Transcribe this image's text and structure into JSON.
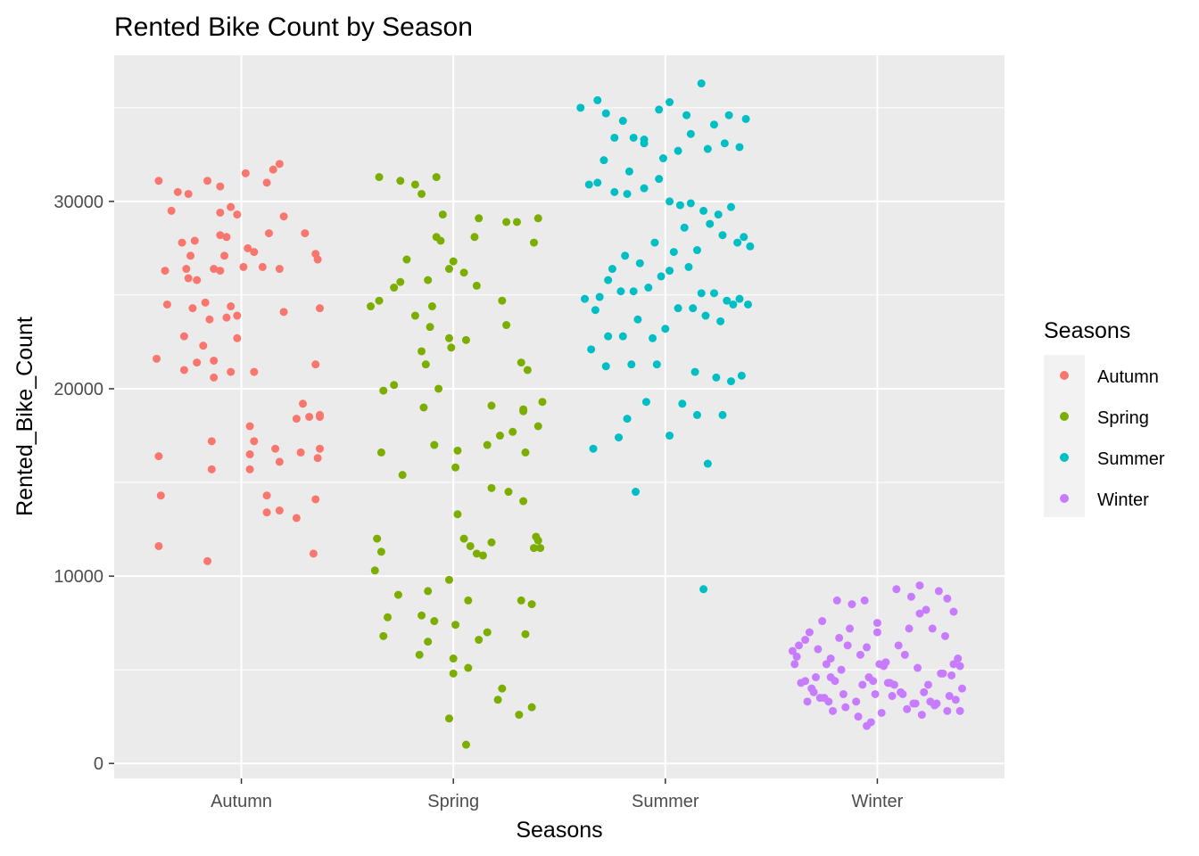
{
  "chart_data": {
    "type": "scatter",
    "title": "Rented Bike Count by Season",
    "xlabel": "Seasons",
    "ylabel": "Rented_Bike_Count",
    "categories": [
      "Autumn",
      "Spring",
      "Summer",
      "Winter"
    ],
    "y_ticks": [
      "0",
      "10000",
      "20000",
      "30000"
    ],
    "ylim": [
      -800,
      37800
    ],
    "grid": true,
    "legend": {
      "title": "Seasons",
      "position": "right",
      "entries": [
        "Autumn",
        "Spring",
        "Summer",
        "Winter"
      ]
    },
    "colors": {
      "Autumn": "#F8766D",
      "Spring": "#7CAE00",
      "Summer": "#00BFC4",
      "Winter": "#C77CFF"
    },
    "panel_background": "#EBEBEB",
    "series": [
      {
        "name": "Autumn",
        "x": [
          0.95,
          0.9,
          1.12,
          1.2,
          1.15,
          1.3,
          0.93,
          0.9,
          0.72,
          0.9,
          1.13,
          1.35,
          1.36,
          0.9,
          0.78,
          1.03,
          1.06,
          1.18,
          0.79,
          0.75,
          0.87,
          0.92,
          1.1,
          1.01,
          0.64,
          0.67,
          0.76,
          0.61,
          0.75,
          0.84,
          1.02,
          1.18,
          0.7,
          0.98,
          0.93,
          0.77,
          0.74,
          0.95,
          0.79,
          0.95,
          0.83,
          0.98,
          0.65,
          1.37,
          1.2,
          0.85,
          0.98,
          0.87,
          0.6,
          1.06,
          0.73,
          0.87,
          1.35,
          1.32,
          1.29,
          1.37,
          0.73,
          0.82,
          1.37,
          0.86,
          1.36,
          1.28,
          1.06,
          1.04,
          1.26,
          1.16,
          1.04,
          1.37,
          0.86,
          1.18,
          0.61,
          1.12,
          1.04,
          0.62,
          1.18,
          0.61,
          1.12,
          1.35,
          1.26,
          0.84,
          1.34
        ],
        "y": [
          29700,
          29400,
          31000,
          29200,
          31700,
          28300,
          28100,
          30800,
          27800,
          28200,
          28300,
          27200,
          26900,
          26300,
          27900,
          27500,
          27300,
          26400,
          25800,
          25900,
          26400,
          27100,
          26500,
          26500,
          26300,
          29500,
          27100,
          31100,
          30400,
          31100,
          31500,
          32000,
          30500,
          29300,
          23800,
          24300,
          26400,
          24400,
          21400,
          20900,
          24600,
          22700,
          24500,
          24300,
          24100,
          23700,
          23900,
          21500,
          21600,
          20900,
          21000,
          20600,
          21300,
          18500,
          19200,
          18500,
          22800,
          22300,
          18600,
          17200,
          16300,
          16600,
          17200,
          18000,
          18400,
          16800,
          16500,
          16800,
          15700,
          16100,
          16400,
          14300,
          15700,
          14300,
          13500,
          11600,
          13400,
          14100,
          13100,
          10800,
          11200
        ]
      },
      {
        "name": "Spring",
        "x": [
          1.65,
          1.75,
          1.82,
          1.85,
          1.92,
          1.95,
          2.12,
          2.25,
          2.3,
          2.4,
          2.38,
          2.1,
          1.92,
          1.94,
          1.98,
          2.0,
          2.05,
          1.78,
          1.88,
          1.75,
          1.72,
          1.65,
          1.61,
          1.82,
          1.89,
          1.98,
          2.06,
          1.87,
          2.25,
          2.35,
          2.42,
          1.67,
          1.72,
          1.86,
          2.18,
          2.4,
          2.22,
          2.16,
          1.91,
          2.02,
          1.66,
          1.76,
          2.01,
          2.18,
          2.26,
          2.33,
          1.64,
          1.66,
          2.08,
          2.4,
          2.38,
          2.11,
          1.63,
          1.74,
          1.98,
          2.07,
          2.32,
          1.69,
          1.91,
          2.01,
          2.12,
          1.88,
          2.34,
          2.16,
          1.67,
          1.84,
          2.0,
          2.07,
          2.21,
          2.23,
          2.37,
          2.31,
          1.98,
          2.06,
          1.93,
          1.85,
          2.32,
          2.34,
          1.9,
          1.99,
          2.11,
          2.23,
          2.02,
          2.05,
          2.14,
          2.18,
          2.28,
          2.33,
          2.39,
          2.41,
          1.88,
          2.37,
          1.85,
          2.0,
          2.33
        ],
        "y": [
          31300,
          31100,
          30900,
          30400,
          31300,
          29300,
          29100,
          28900,
          28900,
          29100,
          27800,
          28100,
          28100,
          27900,
          26400,
          26800,
          26200,
          26900,
          25800,
          25700,
          25400,
          24700,
          24400,
          23900,
          23300,
          22700,
          22600,
          21300,
          23400,
          21000,
          19300,
          19900,
          20200,
          19000,
          19100,
          18000,
          17500,
          17000,
          17000,
          16700,
          16600,
          15400,
          15800,
          14700,
          14500,
          14000,
          12000,
          11300,
          11600,
          11900,
          11500,
          11200,
          10300,
          9000,
          9800,
          8700,
          8700,
          7800,
          7600,
          7400,
          6600,
          6500,
          6900,
          7000,
          6800,
          5800,
          5600,
          5100,
          3400,
          4000,
          3000,
          2600,
          2400,
          1000,
          20000,
          22000,
          21400,
          16600,
          24400,
          22200,
          25500,
          24700,
          13300,
          12000,
          11100,
          11800,
          17700,
          18800,
          12100,
          11500,
          9200,
          8500,
          7900,
          4800,
          18900
        ]
      },
      {
        "name": "Summer",
        "x": [
          2.6,
          2.68,
          2.72,
          2.8,
          2.85,
          2.9,
          2.97,
          3.02,
          3.1,
          3.17,
          3.23,
          3.3,
          3.38,
          3.35,
          3.28,
          3.2,
          3.12,
          3.06,
          2.99,
          2.9,
          2.83,
          2.76,
          2.71,
          2.64,
          2.68,
          2.76,
          2.82,
          2.9,
          2.97,
          3.02,
          3.07,
          3.12,
          3.18,
          3.25,
          3.31,
          3.37,
          3.4,
          3.34,
          3.27,
          3.21,
          3.15,
          3.09,
          3.02,
          2.95,
          2.88,
          2.81,
          2.75,
          2.69,
          2.62,
          2.67,
          2.73,
          2.79,
          2.85,
          2.92,
          2.98,
          3.04,
          3.11,
          3.17,
          3.23,
          3.29,
          3.35,
          3.39,
          3.32,
          3.26,
          3.19,
          3.13,
          3.06,
          3.0,
          2.94,
          2.87,
          2.8,
          2.73,
          2.65,
          2.72,
          2.84,
          2.96,
          3.14,
          3.24,
          3.31,
          3.36,
          3.08,
          2.91,
          3.15,
          2.82,
          2.66,
          2.78,
          2.86,
          3.2,
          3.27,
          3.02,
          3.18
        ],
        "y": [
          35000,
          35400,
          34700,
          34300,
          33400,
          33100,
          34900,
          35300,
          34600,
          36300,
          34100,
          34600,
          34400,
          32900,
          33100,
          32800,
          33600,
          32700,
          32300,
          33300,
          31600,
          33400,
          32200,
          30900,
          31000,
          30500,
          30400,
          30700,
          31200,
          30000,
          29800,
          29900,
          29500,
          29300,
          29700,
          28100,
          27600,
          27800,
          28200,
          28800,
          27400,
          28600,
          26300,
          27800,
          26700,
          27100,
          26400,
          24900,
          24800,
          24200,
          25800,
          25200,
          25200,
          25400,
          26000,
          27300,
          26500,
          25100,
          25100,
          24700,
          24800,
          24500,
          24500,
          23600,
          23900,
          24300,
          24300,
          23200,
          22700,
          23700,
          22800,
          22800,
          22100,
          21200,
          21300,
          21300,
          20900,
          20600,
          20400,
          20700,
          19200,
          19300,
          18600,
          18400,
          16800,
          17400,
          14500,
          16000,
          18600,
          17500,
          9300
        ]
      },
      {
        "name": "Winter",
        "x": [
          3.6,
          3.63,
          3.68,
          3.72,
          3.78,
          3.82,
          3.88,
          3.95,
          4.0,
          4.04,
          4.1,
          4.15,
          4.2,
          4.26,
          4.32,
          4.38,
          3.62,
          3.66,
          3.71,
          3.76,
          3.8,
          3.86,
          3.92,
          3.98,
          4.03,
          4.08,
          4.13,
          4.19,
          4.24,
          4.3,
          4.36,
          4.4,
          3.64,
          3.7,
          3.75,
          3.83,
          3.9,
          3.96,
          4.01,
          4.06,
          4.12,
          4.17,
          4.22,
          4.28,
          4.34,
          4.39,
          3.67,
          3.73,
          3.79,
          3.85,
          3.91,
          3.97,
          4.02,
          4.07,
          4.14,
          4.21,
          4.27,
          4.33,
          4.37,
          3.61,
          3.69,
          3.77,
          3.84,
          3.93,
          3.99,
          4.05,
          4.11,
          4.18,
          4.25,
          4.31,
          4.35,
          3.74,
          3.81,
          3.94,
          4.09,
          4.16,
          4.23,
          4.29,
          3.87,
          4.0,
          4.2,
          4.33,
          4.36,
          4.39,
          3.66,
          3.78,
          3.95
        ],
        "y": [
          6000,
          6300,
          7000,
          6100,
          5600,
          6700,
          8500,
          6200,
          7000,
          5400,
          6300,
          7200,
          8000,
          7200,
          6800,
          5600,
          5700,
          6600,
          4600,
          5300,
          4400,
          6300,
          5800,
          4400,
          5200,
          4200,
          5800,
          5100,
          4200,
          4800,
          5300,
          4000,
          4300,
          3800,
          3500,
          5000,
          3300,
          4600,
          5300,
          4300,
          3700,
          3200,
          3800,
          3200,
          3600,
          2800,
          3300,
          3500,
          2800,
          3000,
          2500,
          2200,
          2700,
          3600,
          2900,
          2600,
          3100,
          2800,
          3400,
          5300,
          4000,
          3300,
          3700,
          4200,
          3700,
          4300,
          3800,
          3200,
          3300,
          4800,
          4700,
          7600,
          8700,
          8700,
          9300,
          8900,
          8200,
          9200,
          7200,
          7500,
          9500,
          8800,
          8100,
          5200,
          4400,
          4600,
          2000
        ]
      }
    ]
  }
}
